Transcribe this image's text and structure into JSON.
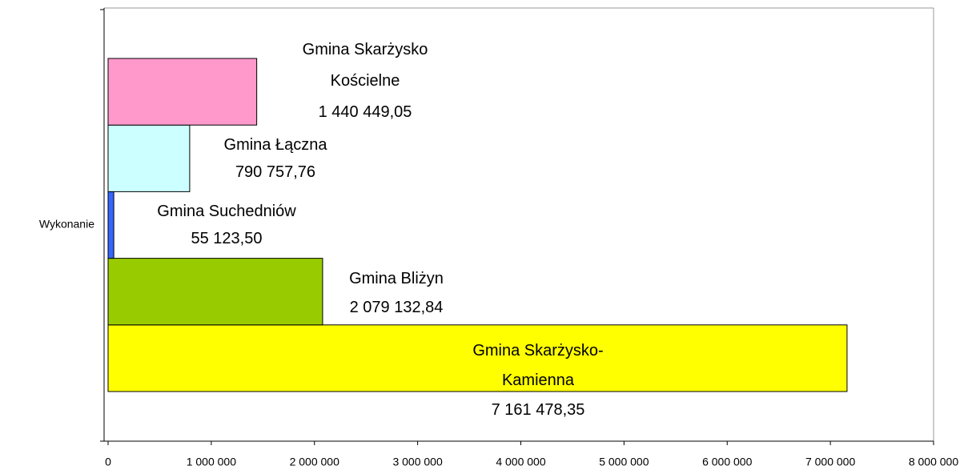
{
  "chart_data": {
    "type": "hbar",
    "categories": [
      "Wykonanie"
    ],
    "series": [
      {
        "name": "Gmina Skarżysko-Kamienna",
        "color": "#ffff00",
        "values": [
          7161478.35
        ],
        "value_labels": [
          "7 161 478,35"
        ]
      },
      {
        "name": "Gmina Bliżyn",
        "color": "#99cc00",
        "values": [
          2079132.84
        ],
        "value_labels": [
          "2 079 132,84"
        ]
      },
      {
        "name": "Gmina Suchedniów",
        "color": "#3366ff",
        "values": [
          55123.5
        ],
        "value_labels": [
          "55 123,50"
        ]
      },
      {
        "name": "Gmina Łączna",
        "color": "#ccffff",
        "values": [
          790757.76
        ],
        "value_labels": [
          "790 757,76"
        ]
      },
      {
        "name": "Gmina Skarżysko Kościelne",
        "color": "#ff99cc",
        "values": [
          1440449.05
        ],
        "value_labels": [
          "1 440 449,05"
        ]
      }
    ],
    "xlim": [
      0,
      8000000
    ],
    "xticks": [
      0,
      {
        "value": 1000000,
        "label": "1 000 000"
      },
      {
        "value": 2000000,
        "label": "2 000 000"
      },
      {
        "value": 3000000,
        "label": "3 000 000"
      },
      {
        "value": 4000000,
        "label": "4 000 000"
      },
      {
        "value": 5000000,
        "label": "5 000 000"
      },
      {
        "value": 6000000,
        "label": "6 000 000"
      },
      {
        "value": 7000000,
        "label": "7 000 000"
      },
      {
        "value": 8000000,
        "label": "8 000 000"
      }
    ]
  }
}
